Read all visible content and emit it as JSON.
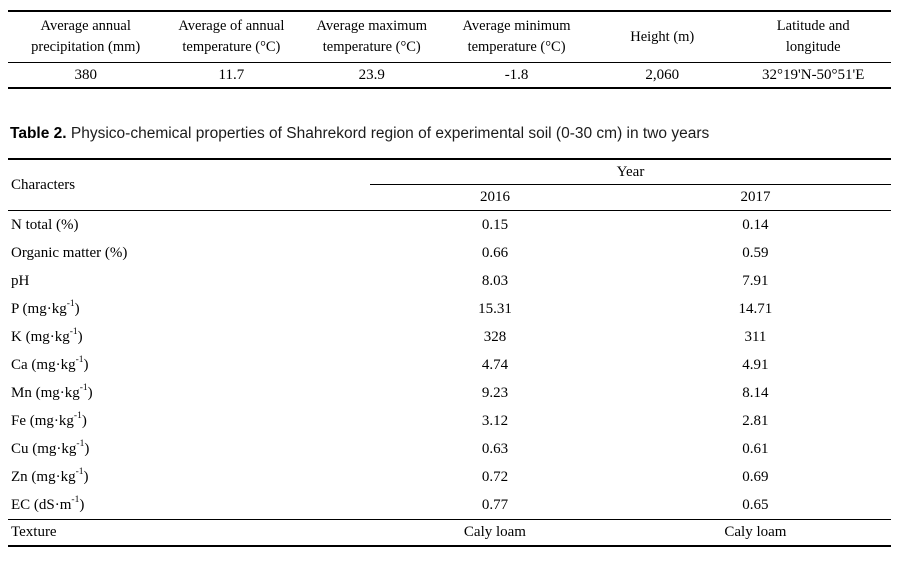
{
  "climate": {
    "columns": [
      {
        "line1": "Average annual",
        "line2": "precipitation (mm)",
        "value": "380"
      },
      {
        "line1": "Average of annual",
        "line2": "temperature (°C)",
        "value": "11.7"
      },
      {
        "line1": "Average maximum",
        "line2": "temperature (°C)",
        "value": "23.9"
      },
      {
        "line1": "Average minimum",
        "line2": "temperature (°C)",
        "value": "-1.8"
      },
      {
        "line1": "Height (m)",
        "line2": "",
        "value": "2,060"
      },
      {
        "line1": "Latitude and",
        "line2": "longitude",
        "value": "32°19'N-50°51'E"
      }
    ]
  },
  "table2": {
    "caption_label": "Table 2.",
    "caption_text": "Physico-chemical properties of Shahrekord region of experimental soil (0-30 cm) in two years",
    "header": {
      "characters": "Characters",
      "year": "Year",
      "col_2016": "2016",
      "col_2017": "2017"
    },
    "rows": [
      {
        "pre": "N total (%)",
        "sup": "",
        "post": "",
        "y2016": "0.15",
        "y2017": "0.14"
      },
      {
        "pre": "Organic matter (%)",
        "sup": "",
        "post": "",
        "y2016": "0.66",
        "y2017": "0.59"
      },
      {
        "pre": "pH",
        "sup": "",
        "post": "",
        "y2016": "8.03",
        "y2017": "7.91"
      },
      {
        "pre": "P (mg·kg",
        "sup": "-1",
        "post": ")",
        "y2016": "15.31",
        "y2017": "14.71"
      },
      {
        "pre": "K (mg·kg",
        "sup": "-1",
        "post": ")",
        "y2016": "328",
        "y2017": "311"
      },
      {
        "pre": "Ca (mg·kg",
        "sup": "-1",
        "post": ")",
        "y2016": "4.74",
        "y2017": "4.91"
      },
      {
        "pre": "Mn (mg·kg",
        "sup": "-1",
        "post": ")",
        "y2016": "9.23",
        "y2017": "8.14"
      },
      {
        "pre": "Fe (mg·kg",
        "sup": "-1",
        "post": ")",
        "y2016": "3.12",
        "y2017": "2.81"
      },
      {
        "pre": "Cu (mg·kg",
        "sup": "-1",
        "post": ")",
        "y2016": "0.63",
        "y2017": "0.61"
      },
      {
        "pre": "Zn (mg·kg",
        "sup": "-1",
        "post": ")",
        "y2016": "0.72",
        "y2017": "0.69"
      },
      {
        "pre": "EC (dS·m",
        "sup": "-1",
        "post": ")",
        "y2016": "0.77",
        "y2017": "0.65"
      },
      {
        "pre": "Texture",
        "sup": "",
        "post": "",
        "y2016": "Caly loam",
        "y2017": "Caly loam"
      }
    ]
  }
}
